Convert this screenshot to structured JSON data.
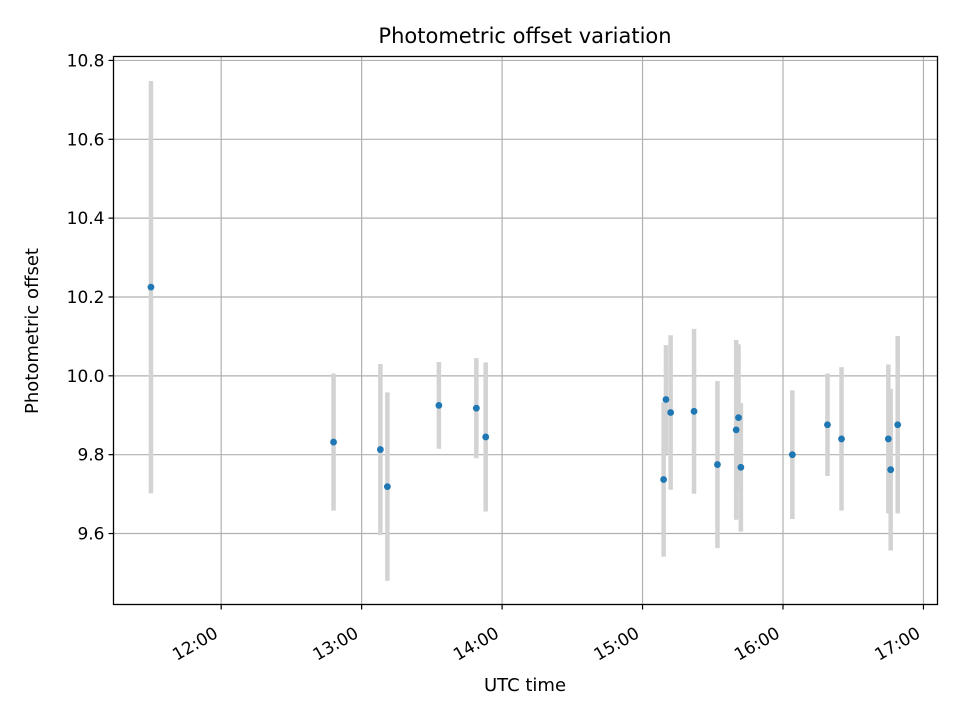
{
  "chart_data": {
    "type": "scatter",
    "title": "Photometric offset variation",
    "xlabel": "UTC time",
    "ylabel": "Photometric offset",
    "xlim": [
      "11:14",
      "17:06"
    ],
    "ylim": [
      9.42,
      10.81
    ],
    "x_ticks": [
      "12:00",
      "13:00",
      "14:00",
      "15:00",
      "16:00",
      "17:00"
    ],
    "y_ticks": [
      9.6,
      9.8,
      10.0,
      10.2,
      10.4,
      10.6,
      10.8
    ],
    "grid": true,
    "marker_color": "#1f77b4",
    "errorbar_color": "#d3d3d3",
    "points": [
      {
        "t": "11:30",
        "y": 10.225,
        "err": 0.523
      },
      {
        "t": "12:48",
        "y": 9.832,
        "err": 0.174
      },
      {
        "t": "13:08",
        "y": 9.813,
        "err": 0.217
      },
      {
        "t": "13:11",
        "y": 9.719,
        "err": 0.239
      },
      {
        "t": "13:33",
        "y": 9.925,
        "err": 0.11
      },
      {
        "t": "13:49",
        "y": 9.918,
        "err": 0.127
      },
      {
        "t": "13:53",
        "y": 9.845,
        "err": 0.189
      },
      {
        "t": "15:09",
        "y": 9.737,
        "err": 0.196
      },
      {
        "t": "15:10",
        "y": 9.94,
        "err": 0.138
      },
      {
        "t": "15:12",
        "y": 9.907,
        "err": 0.196
      },
      {
        "t": "15:22",
        "y": 9.91,
        "err": 0.209
      },
      {
        "t": "15:32",
        "y": 9.775,
        "err": 0.212
      },
      {
        "t": "15:40",
        "y": 9.863,
        "err": 0.228
      },
      {
        "t": "15:41",
        "y": 9.894,
        "err": 0.186
      },
      {
        "t": "15:42",
        "y": 9.768,
        "err": 0.163
      },
      {
        "t": "16:04",
        "y": 9.8,
        "err": 0.163
      },
      {
        "t": "16:19",
        "y": 9.876,
        "err": 0.13
      },
      {
        "t": "16:25",
        "y": 9.84,
        "err": 0.182
      },
      {
        "t": "16:45",
        "y": 9.84,
        "err": 0.189
      },
      {
        "t": "16:46",
        "y": 9.762,
        "err": 0.205
      },
      {
        "t": "16:49",
        "y": 9.876,
        "err": 0.225
      }
    ]
  }
}
